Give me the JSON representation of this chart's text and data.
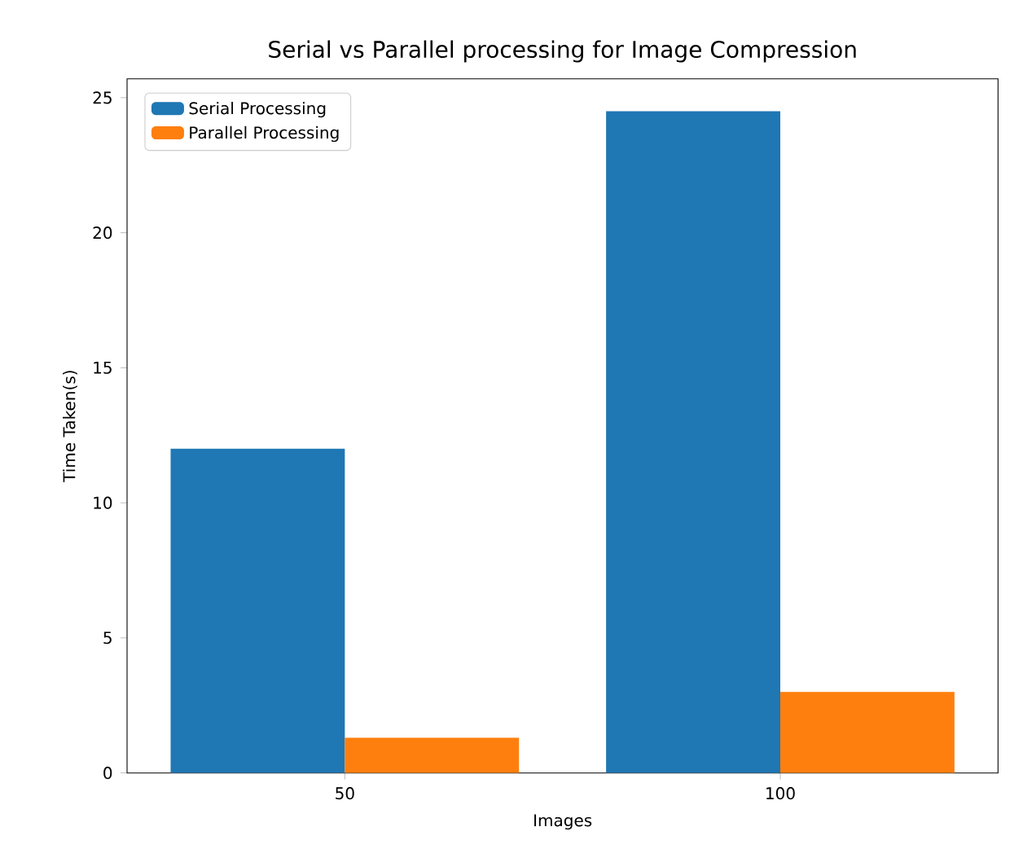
{
  "chart_data": {
    "type": "bar",
    "title": "Serial vs Parallel processing for Image Compression",
    "xlabel": "Images",
    "ylabel": "Time Taken(s)",
    "categories": [
      "50",
      "100"
    ],
    "series": [
      {
        "name": "Serial Processing",
        "color": "#1f77b4",
        "values": [
          12.0,
          24.5
        ]
      },
      {
        "name": "Parallel Processing",
        "color": "#ff7f0e",
        "values": [
          1.3,
          3.0
        ]
      }
    ],
    "ylim": [
      0,
      25.7
    ],
    "yticks": [
      0,
      5,
      10,
      15,
      20,
      25
    ],
    "legend": "top left",
    "grid": false
  }
}
